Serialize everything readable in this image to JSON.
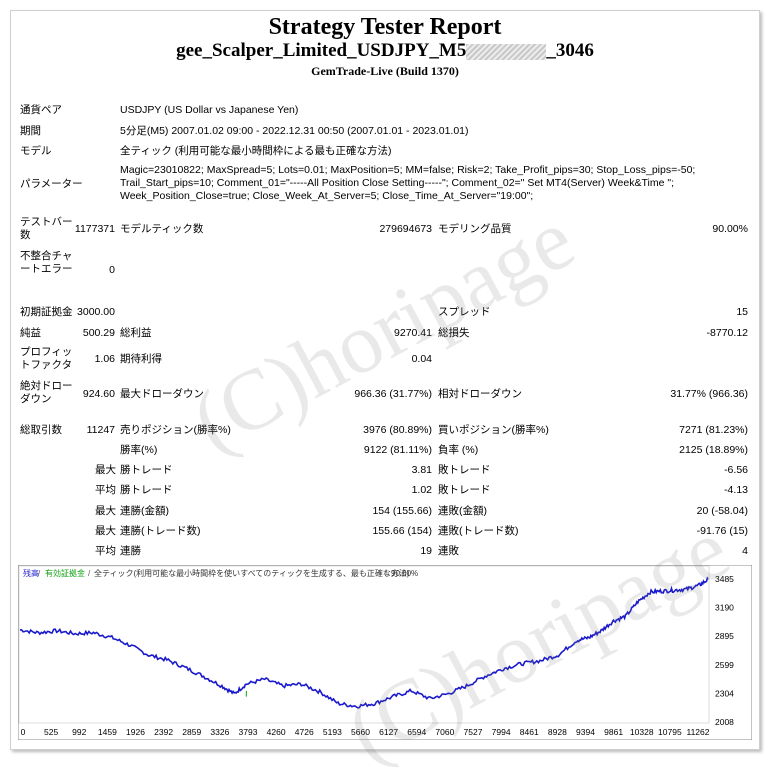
{
  "header": {
    "title": "Strategy Tester Report",
    "subtitle_prefix": "gee_Scalper_Limited_USDJPY_M5",
    "subtitle_suffix": "_3046",
    "build": "GemTrade-Live (Build 1370)"
  },
  "info": {
    "symbol_label": "通貨ペア",
    "symbol_value": "USDJPY (US Dollar vs Japanese Yen)",
    "period_label": "期間",
    "period_value": "5分足(M5) 2007.01.02 09:00 - 2022.12.31 00:50 (2007.01.01 - 2023.01.01)",
    "model_label": "モデル",
    "model_value": "全ティック (利用可能な最小時間枠による最も正確な方法)",
    "params_label": "パラメーター",
    "params_value": "Magic=23010822; MaxSpread=5; Lots=0.01; MaxPosition=5; MM=false; Risk=2; Take_Profit_pips=30; Stop_Loss_pips=-50; Trail_Start_pips=10; Comment_01=\"-----All Position Close Setting-----\"; Comment_02=\" Set MT4(Server) Week&Time \"; Week_Position_Close=true; Close_Week_At_Server=5; Close_Time_At_Server=\"19:00\";"
  },
  "bars": {
    "bars_label": "テストバー数",
    "bars_value": "1177371",
    "ticks_label": "モデルティック数",
    "ticks_value": "279694673",
    "quality_label": "モデリング品質",
    "quality_value": "90.00%",
    "mismatch_label": "不整合チャートエラー",
    "mismatch_value": "0"
  },
  "stats": {
    "deposit_label": "初期証拠金",
    "deposit_value": "3000.00",
    "spread_label": "スプレッド",
    "spread_value": "15",
    "net_label": "純益",
    "net_value": "500.29",
    "gross_profit_label": "総利益",
    "gross_profit_value": "9270.41",
    "gross_loss_label": "総損失",
    "gross_loss_value": "-8770.12",
    "pf_label": "プロフィットファクタ",
    "pf_value": "1.06",
    "exp_label": "期待利得",
    "exp_value": "0.04",
    "abs_dd_label": "絶対ドローダウン",
    "abs_dd_value": "924.60",
    "max_dd_label": "最大ドローダウン",
    "max_dd_value": "966.36 (31.77%)",
    "rel_dd_label": "相対ドローダウン",
    "rel_dd_value": "31.77% (966.36)",
    "trades_label": "総取引数",
    "trades_value": "11247",
    "short_label": "売りポジション(勝率%)",
    "short_value": "3976 (80.89%)",
    "long_label": "買いポジション(勝率%)",
    "long_value": "7271 (81.23%)",
    "win_label": "勝率(%)",
    "win_value": "9122 (81.11%)",
    "loss_label": "負率 (%)",
    "loss_value": "2125 (18.89%)",
    "largest": "最大",
    "average": "平均",
    "largest_win_label": "勝トレード",
    "largest_win_value": "3.81",
    "largest_loss_label": "敗トレード",
    "largest_loss_value": "-6.56",
    "avg_win_label": "勝トレード",
    "avg_win_value": "1.02",
    "avg_loss_label": "敗トレード",
    "avg_loss_value": "-4.13",
    "max_cons_win_label": "連勝(金額)",
    "max_cons_win_value": "154 (155.66)",
    "max_cons_loss_label": "連敗(金額)",
    "max_cons_loss_value": "20 (-58.04)",
    "max_cons_profit_label": "連勝(トレード数)",
    "max_cons_profit_value": "155.66 (154)",
    "max_cons_lossamt_label": "連敗(トレード数)",
    "max_cons_lossamt_value": "-91.76 (15)",
    "avg_cons_win_label": "連勝",
    "avg_cons_win_value": "19",
    "avg_cons_loss_label": "連敗",
    "avg_cons_loss_value": "4"
  },
  "chart_data": {
    "type": "line",
    "legend_balance": "残高",
    "legend_margin": "有効証拠金",
    "legend_info": "全ティック(利用可能な最小時間枠を使いすべてのティックを生成する、最も正確な方法)",
    "legend_quality": "90.00%",
    "x_ticks": [
      "0",
      "525",
      "992",
      "1459",
      "1926",
      "2392",
      "2859",
      "3326",
      "3793",
      "4260",
      "4726",
      "5193",
      "5660",
      "6127",
      "6594",
      "7060",
      "7527",
      "7994",
      "8461",
      "8928",
      "9394",
      "9861",
      "10328",
      "10795",
      "11262"
    ],
    "y_ticks": [
      "3485",
      "3190",
      "2895",
      "2599",
      "2304",
      "2008"
    ],
    "ylim": [
      2008,
      3485
    ],
    "xlim": [
      0,
      11247
    ],
    "x": [
      0,
      300,
      600,
      900,
      1200,
      1500,
      1800,
      2100,
      2400,
      2700,
      3000,
      3300,
      3500,
      3700,
      4000,
      4300,
      4600,
      4900,
      5200,
      5500,
      5800,
      6100,
      6400,
      6700,
      7000,
      7300,
      7600,
      7900,
      8200,
      8500,
      8800,
      9100,
      9300,
      9500,
      9700,
      9900,
      10100,
      10300,
      10500,
      10700,
      10900,
      11100,
      11247
    ],
    "balance": [
      2960,
      2930,
      2950,
      2920,
      2930,
      2880,
      2800,
      2700,
      2650,
      2570,
      2480,
      2380,
      2300,
      2400,
      2450,
      2380,
      2400,
      2320,
      2200,
      2170,
      2200,
      2270,
      2330,
      2250,
      2300,
      2380,
      2480,
      2560,
      2610,
      2640,
      2700,
      2850,
      2880,
      2950,
      3050,
      3100,
      3250,
      3350,
      3360,
      3370,
      3380,
      3420,
      3480
    ],
    "series": [
      {
        "name": "残高",
        "color": "#1a1acc"
      },
      {
        "name": "有効証拠金",
        "color": "#14a014"
      }
    ]
  },
  "watermark": "(C)horipage"
}
